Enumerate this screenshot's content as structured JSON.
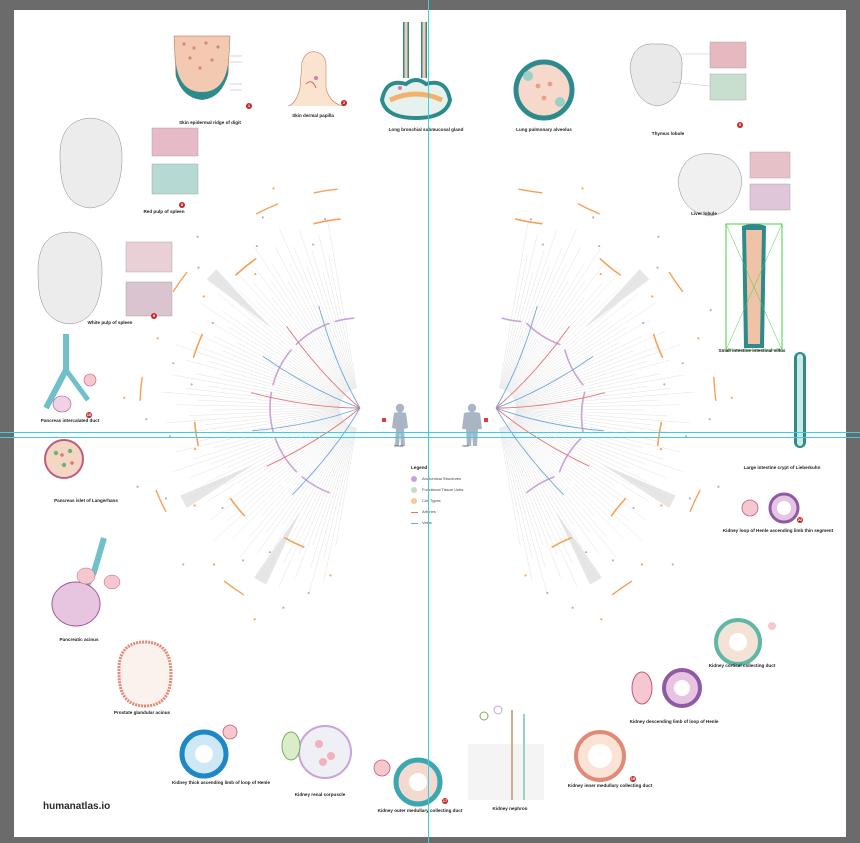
{
  "site": "humanatlas.io",
  "legend": {
    "title": "Legend",
    "items": [
      {
        "label": "Anatomical Structures",
        "color": "#c9a3d9",
        "kind": "dot"
      },
      {
        "label": "Functional Tissue Units",
        "color": "#bfe0c4",
        "kind": "dot"
      },
      {
        "label": "Cell Types",
        "color": "#f7c99a",
        "kind": "dot"
      },
      {
        "label": "Arteries",
        "color": "#e57373",
        "kind": "line"
      },
      {
        "label": "Veins",
        "color": "#6fa8dc",
        "kind": "line"
      }
    ]
  },
  "bodies": {
    "female": "female",
    "male": "male"
  },
  "ftus": [
    {
      "id": "skin-ridge",
      "title": "Skin epidermal ridge of digit",
      "badge": "1"
    },
    {
      "id": "skin-papilla",
      "title": "Skin dermal papilla",
      "badge": "2"
    },
    {
      "id": "lung-gland",
      "title": "Long bronchial submucosal gland",
      "badge": ""
    },
    {
      "id": "lung-alveolus",
      "title": "Lung pulmonary alveolus",
      "badge": ""
    },
    {
      "id": "thymus",
      "title": "Thymus lobule",
      "badge": "5"
    },
    {
      "id": "liver",
      "title": "Liver lobule",
      "badge": ""
    },
    {
      "id": "small-villus",
      "title": "Small intestine intestinal villus",
      "badge": ""
    },
    {
      "id": "large-crypt",
      "title": "Large intestine crypt of Lieberkuhn",
      "badge": ""
    },
    {
      "id": "red-pulp",
      "title": "Red pulp of spleen",
      "badge": "8"
    },
    {
      "id": "white-pulp",
      "title": "White pulp of spleen",
      "badge": "9"
    },
    {
      "id": "pancreas-duct",
      "title": "Pancreas intercalated duct",
      "badge": "10"
    },
    {
      "id": "islet",
      "title": "Pancreas islet of Langerhans",
      "badge": ""
    },
    {
      "id": "acinus",
      "title": "Pancreatic acinus",
      "badge": ""
    },
    {
      "id": "prostate",
      "title": "Prostate glandular acinus",
      "badge": ""
    },
    {
      "id": "kidney-thick",
      "title": "Kidney thick ascending limb of loop of Henle",
      "badge": ""
    },
    {
      "id": "kidney-corpuscle",
      "title": "Kidney renal corpuscle",
      "badge": ""
    },
    {
      "id": "kidney-outer",
      "title": "Kidney outer medullary collecting duct",
      "badge": "17"
    },
    {
      "id": "kidney-nephron",
      "title": "Kidney nephron",
      "badge": ""
    },
    {
      "id": "kidney-inner",
      "title": "Kidney inner medullary collecting duct",
      "badge": "19"
    },
    {
      "id": "kidney-descending",
      "title": "Kidney descending limb of loop of Henle",
      "badge": ""
    },
    {
      "id": "kidney-cortical",
      "title": "Kidney cortical collecting duct",
      "badge": ""
    },
    {
      "id": "kidney-thin",
      "title": "Kidney loop of Henle ascending limb thin segment",
      "badge": "22"
    }
  ]
}
